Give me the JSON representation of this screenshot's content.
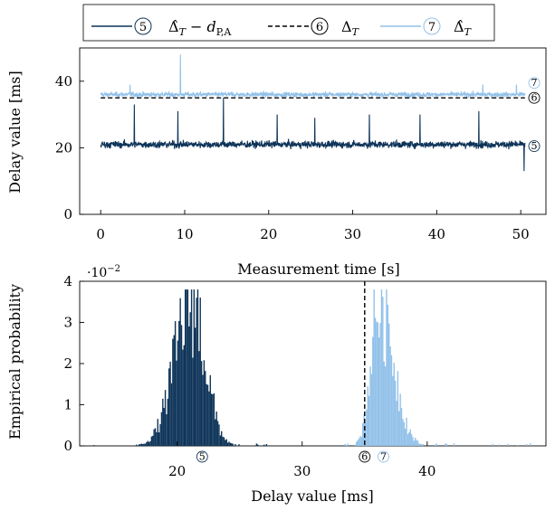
{
  "colors": {
    "dark": "#0d3358",
    "light": "#92c1e9",
    "black": "#000000"
  },
  "legend": {
    "items": [
      {
        "id": "5",
        "marker": "5",
        "label": "Δ̂_T − d_{P,A}",
        "style": "solid",
        "color": "#0d3358"
      },
      {
        "id": "6",
        "marker": "6",
        "label": "Δ_T",
        "style": "dashed",
        "color": "#000000"
      },
      {
        "id": "7",
        "marker": "7",
        "label": "Δ̂_T",
        "style": "solid",
        "color": "#92c1e9"
      }
    ]
  },
  "chart_data": [
    {
      "type": "line",
      "xlabel": "Measurement time [s]",
      "ylabel": "Delay value [ms]",
      "xlim": [
        -2.5,
        53
      ],
      "ylim": [
        0,
        50
      ],
      "x_ticks": [
        "0",
        "10",
        "20",
        "30",
        "40",
        "50"
      ],
      "y_ticks": [
        "0",
        "20",
        "40"
      ],
      "grid": false,
      "legend_position": "top",
      "series": [
        {
          "name": "Δ̂_T − d_{P,A}",
          "marker": "5",
          "color": "#0d3358",
          "x_range": [
            0,
            50.5
          ],
          "mean": 21,
          "band": [
            18,
            24
          ],
          "spikes": [
            [
              4,
              33
            ],
            [
              9.2,
              31
            ],
            [
              14.6,
              35
            ],
            [
              21,
              30
            ],
            [
              25.5,
              29
            ],
            [
              32,
              30
            ],
            [
              38,
              30
            ],
            [
              45,
              31
            ],
            [
              50.4,
              13
            ]
          ]
        },
        {
          "name": "Δ_T",
          "marker": "6",
          "color": "#000000",
          "style": "dashed",
          "x_range": [
            0,
            50.5
          ],
          "value": 35
        },
        {
          "name": "Δ̂_T",
          "marker": "7",
          "color": "#92c1e9",
          "x_range": [
            0,
            50.5
          ],
          "mean": 36,
          "band": [
            34.5,
            37.5
          ],
          "spikes": [
            [
              9.5,
              48
            ],
            [
              3.5,
              39
            ],
            [
              45.5,
              39
            ],
            [
              49.5,
              39
            ]
          ]
        }
      ],
      "end_markers": [
        "7",
        "6",
        "5"
      ]
    },
    {
      "type": "bar",
      "xlabel": "Delay value [ms]",
      "ylabel": "Empirical probability",
      "multiplier": "·10^{-2}",
      "xlim": [
        12.2,
        49.5
      ],
      "ylim": [
        0,
        4
      ],
      "x_ticks": [
        "20",
        "30",
        "40"
      ],
      "y_ticks": [
        "0",
        "1",
        "2",
        "3",
        "4"
      ],
      "grid": false,
      "bin_width": 0.1,
      "series": [
        {
          "name": "Δ̂_T − d_{P,A}",
          "marker": "5",
          "color": "#0d3358",
          "center": 21.1,
          "peak": 3.8,
          "range": [
            13,
            28
          ]
        },
        {
          "name": "Δ_T",
          "marker": "6",
          "color": "#000000",
          "style": "dashed",
          "value": 35
        },
        {
          "name": "Δ̂_T",
          "marker": "7",
          "color": "#92c1e9",
          "center": 36.1,
          "peak": 3.8,
          "range": [
            33,
            49
          ]
        }
      ],
      "axis_markers": [
        {
          "marker": "5",
          "x": 22
        },
        {
          "marker": "6",
          "x": 35
        },
        {
          "marker": "7",
          "x": 36.5
        }
      ]
    }
  ]
}
